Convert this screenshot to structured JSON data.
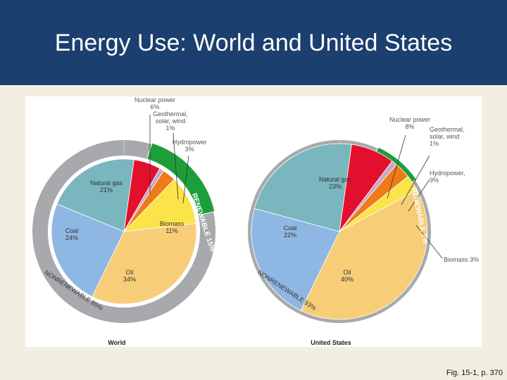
{
  "slide": {
    "title": "Energy Use: World and United States",
    "caption": "Fig. 15-1, p. 370"
  },
  "colors": {
    "header_bg": "#1b3f6e",
    "slide_bg": "#f2efe0",
    "ring": "#a7a9ac",
    "renewable_ring": "#1e9e3a",
    "natural_gas": "#7ab6bd",
    "coal": "#8fb7e3",
    "oil": "#f7cd78",
    "biomass": "#fbe34a",
    "hydropower": "#ee7a1a",
    "geothermal": "#c7a5cf",
    "nuclear": "#e2102d"
  },
  "chart_data": [
    {
      "type": "pie",
      "title": "World",
      "units": "%",
      "slices": [
        {
          "key": "nuclear",
          "label": "Nuclear power",
          "value": 6
        },
        {
          "key": "geothermal",
          "label": "Geothermal, solar, wind",
          "value": 1
        },
        {
          "key": "hydropower",
          "label": "Hydropower",
          "value": 3
        },
        {
          "key": "biomass",
          "label": "Biomass",
          "value": 11
        },
        {
          "key": "oil",
          "label": "Oil",
          "value": 34
        },
        {
          "key": "coal",
          "label": "Coal",
          "value": 24
        },
        {
          "key": "natural_gas",
          "label": "Natural gas",
          "value": 21
        }
      ],
      "rings": {
        "renewable": {
          "label": "RENEWABLE",
          "value": 15
        },
        "nonrenewable": {
          "label": "NONRENEWABLE",
          "value": 85
        }
      },
      "label_lines": {
        "nuclear": [
          "Nuclear power",
          "6%"
        ],
        "geothermal": [
          "Geothermal,",
          "solar, wind",
          "1%"
        ],
        "hydropower": [
          "Hydropower",
          "3%"
        ],
        "biomass": [
          "Biomass",
          "11%"
        ],
        "oil": [
          "Oil",
          "34%"
        ],
        "coal": [
          "Coal",
          "24%"
        ],
        "natural_gas": [
          "Natural gas",
          "21%"
        ]
      },
      "ring_texts": {
        "renewable": "RENEWABLE 15%",
        "nonrenewable": "NONRENEWABLE 85%"
      }
    },
    {
      "type": "pie",
      "title": "United States",
      "units": "%",
      "slices": [
        {
          "key": "nuclear",
          "label": "Nuclear power",
          "value": 8
        },
        {
          "key": "geothermal",
          "label": "Geothermal, solar, wind",
          "value": 1
        },
        {
          "key": "hydropower",
          "label": "Hydropower",
          "value": 3
        },
        {
          "key": "biomass",
          "label": "Biomass",
          "value": 3
        },
        {
          "key": "oil",
          "label": "Oil",
          "value": 40
        },
        {
          "key": "coal",
          "label": "Coal",
          "value": 22
        },
        {
          "key": "natural_gas",
          "label": "Natural gas",
          "value": 23
        }
      ],
      "rings": {
        "renewable": {
          "label": "RENEWABLE",
          "value": 7
        },
        "nonrenewable": {
          "label": "NONRENEWABLE",
          "value": 93
        }
      },
      "label_lines": {
        "nuclear": [
          "Nuclear power",
          "8%"
        ],
        "geothermal": [
          "Geothermal,",
          "solar, wind",
          "1%"
        ],
        "hydropower": [
          "Hydropower,",
          "3%"
        ],
        "biomass": [
          "Biomass 3%"
        ],
        "oil": [
          "Oil",
          "40%"
        ],
        "coal": [
          "Coal",
          "22%"
        ],
        "natural_gas": [
          "Natural gas",
          "23%"
        ]
      },
      "ring_texts": {
        "renewable": "RENEWABLE 7%",
        "nonrenewable": "NONRENEWABLE 93%"
      }
    }
  ]
}
